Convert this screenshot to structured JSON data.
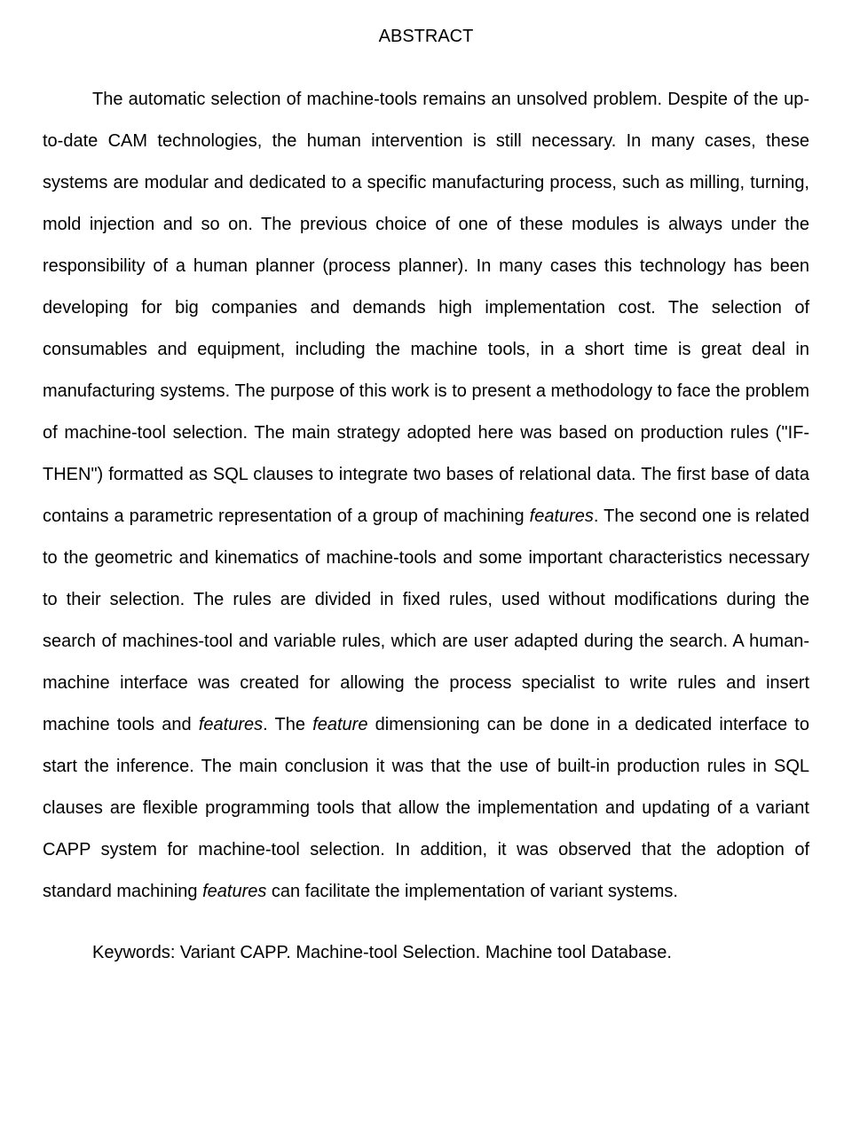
{
  "title": "ABSTRACT",
  "abstract": {
    "part1": "The automatic selection of machine-tools remains an unsolved problem. Despite of the up-to-date CAM technologies, the human intervention is still necessary. In many cases, these systems are modular and dedicated to a specific manufacturing process, such as milling, turning, mold injection and so on. The previous choice of one of these modules is always under the responsibility of a human planner (process planner). In many cases this technology has been developing for big companies and demands high implementation cost. The selection of consumables and equipment, including the machine tools, in a short time is great deal in manufacturing systems. The purpose of this work is to present a methodology to face the problem of machine-tool selection. The main strategy adopted here was based on production rules (\"IF-THEN\") formatted as SQL clauses to integrate two bases of relational data. The first base of data contains a parametric representation of a group of machining ",
    "italic1": "features",
    "part2": ". The second one is related to the geometric and kinematics of machine-tools and some important characteristics necessary to their selection. The rules are divided in fixed rules, used without modifications during the search of machines-tool and variable rules, which are user adapted during the search. A human-machine interface was created for allowing the process specialist to write rules and insert machine tools and ",
    "italic2": "features",
    "part3": ". The ",
    "italic3": "feature",
    "part4": " dimensioning can be done in a dedicated interface to start the inference. The main conclusion it was that the use of built-in production rules in SQL clauses are flexible programming tools that allow the implementation and updating of a variant CAPP system for machine-tool selection. In addition, it was observed that the adoption of standard machining ",
    "italic4": "features",
    "part5": " can facilitate the implementation of variant systems."
  },
  "keywords": "Keywords: Variant CAPP. Machine-tool Selection. Machine tool Database."
}
